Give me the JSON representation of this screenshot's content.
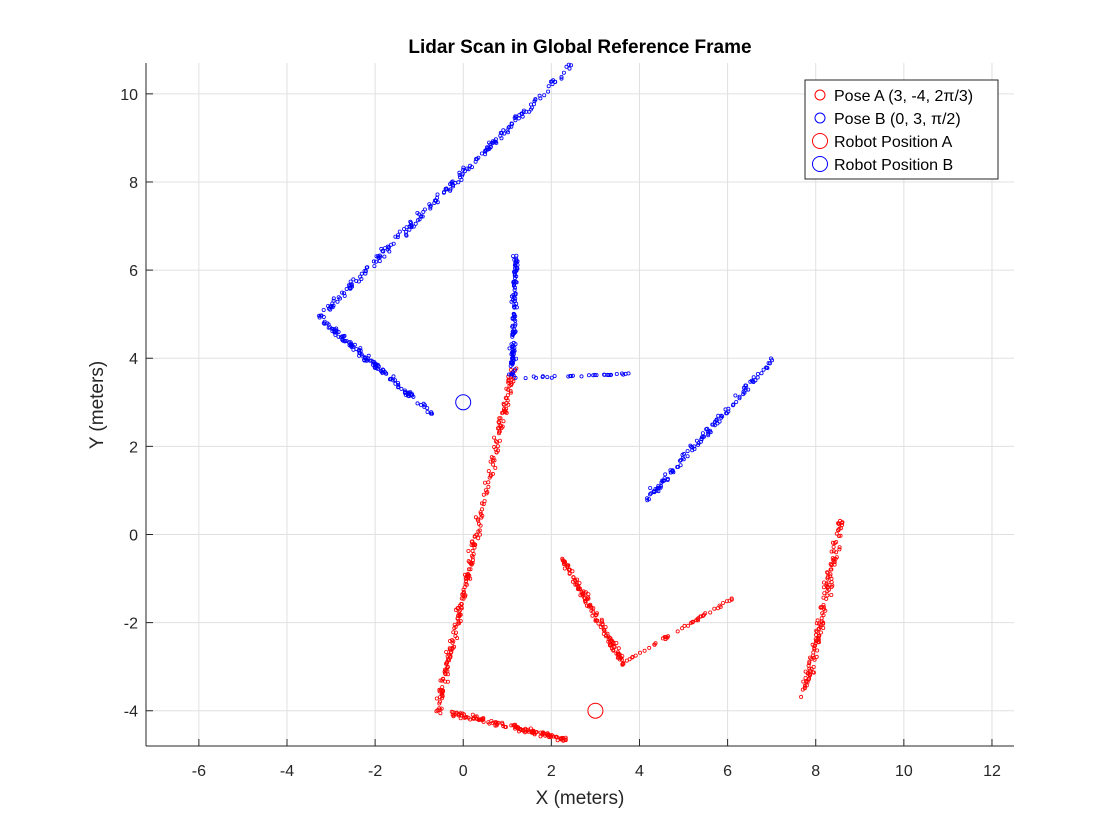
{
  "chart_data": {
    "type": "scatter",
    "title": "Lidar Scan in Global Reference Frame",
    "xlabel": "X (meters)",
    "ylabel": "Y (meters)",
    "xlim": [
      -7.2,
      12.5
    ],
    "ylim": [
      -4.8,
      10.7
    ],
    "xticks": [
      -6,
      -4,
      -2,
      0,
      2,
      4,
      6,
      8,
      10,
      12
    ],
    "yticks": [
      -4,
      -2,
      0,
      2,
      4,
      6,
      8,
      10
    ],
    "grid": true,
    "legend_position": "top-right",
    "series": [
      {
        "name": "Pose A (3, -4, 2π/3)",
        "color": "#ff0000",
        "marker": "small-open-circle",
        "segments": [
          {
            "from": [
              -0.6,
              -4.05
            ],
            "to": [
              1.15,
              3.8
            ],
            "count": 240,
            "spread": 0.08
          },
          {
            "from": [
              -0.3,
              -4.05
            ],
            "to": [
              2.35,
              -4.65
            ],
            "count": 130,
            "spread": 0.06
          },
          {
            "from": [
              2.25,
              -0.55
            ],
            "to": [
              3.65,
              -2.95
            ],
            "count": 130,
            "spread": 0.07
          },
          {
            "from": [
              3.65,
              -2.9
            ],
            "to": [
              6.1,
              -1.45
            ],
            "count": 45,
            "spread": 0.03
          },
          {
            "from": [
              7.7,
              -3.85
            ],
            "to": [
              8.6,
              0.35
            ],
            "count": 140,
            "spread": 0.09
          }
        ]
      },
      {
        "name": "Pose B (0, 3, π/2)",
        "color": "#0000ff",
        "marker": "small-open-circle",
        "segments": [
          {
            "from": [
              -3.3,
              4.9
            ],
            "to": [
              2.45,
              10.65
            ],
            "count": 210,
            "spread": 0.08
          },
          {
            "from": [
              -3.2,
              4.85
            ],
            "to": [
              -0.7,
              2.75
            ],
            "count": 130,
            "spread": 0.07
          },
          {
            "from": [
              1.1,
              3.55
            ],
            "to": [
              1.2,
              6.35
            ],
            "count": 120,
            "spread": 0.06
          },
          {
            "from": [
              1.1,
              3.55
            ],
            "to": [
              4.0,
              3.65
            ],
            "count": 30,
            "spread": 0.02
          },
          {
            "from": [
              4.15,
              0.8
            ],
            "to": [
              7.05,
              4.0
            ],
            "count": 120,
            "spread": 0.07
          }
        ]
      },
      {
        "name": "Robot Position A",
        "color": "#ff0000",
        "marker": "large-open-circle",
        "points": [
          [
            3,
            -4
          ]
        ]
      },
      {
        "name": "Robot Position B",
        "color": "#0000ff",
        "marker": "large-open-circle",
        "points": [
          [
            0,
            3
          ]
        ]
      }
    ]
  }
}
